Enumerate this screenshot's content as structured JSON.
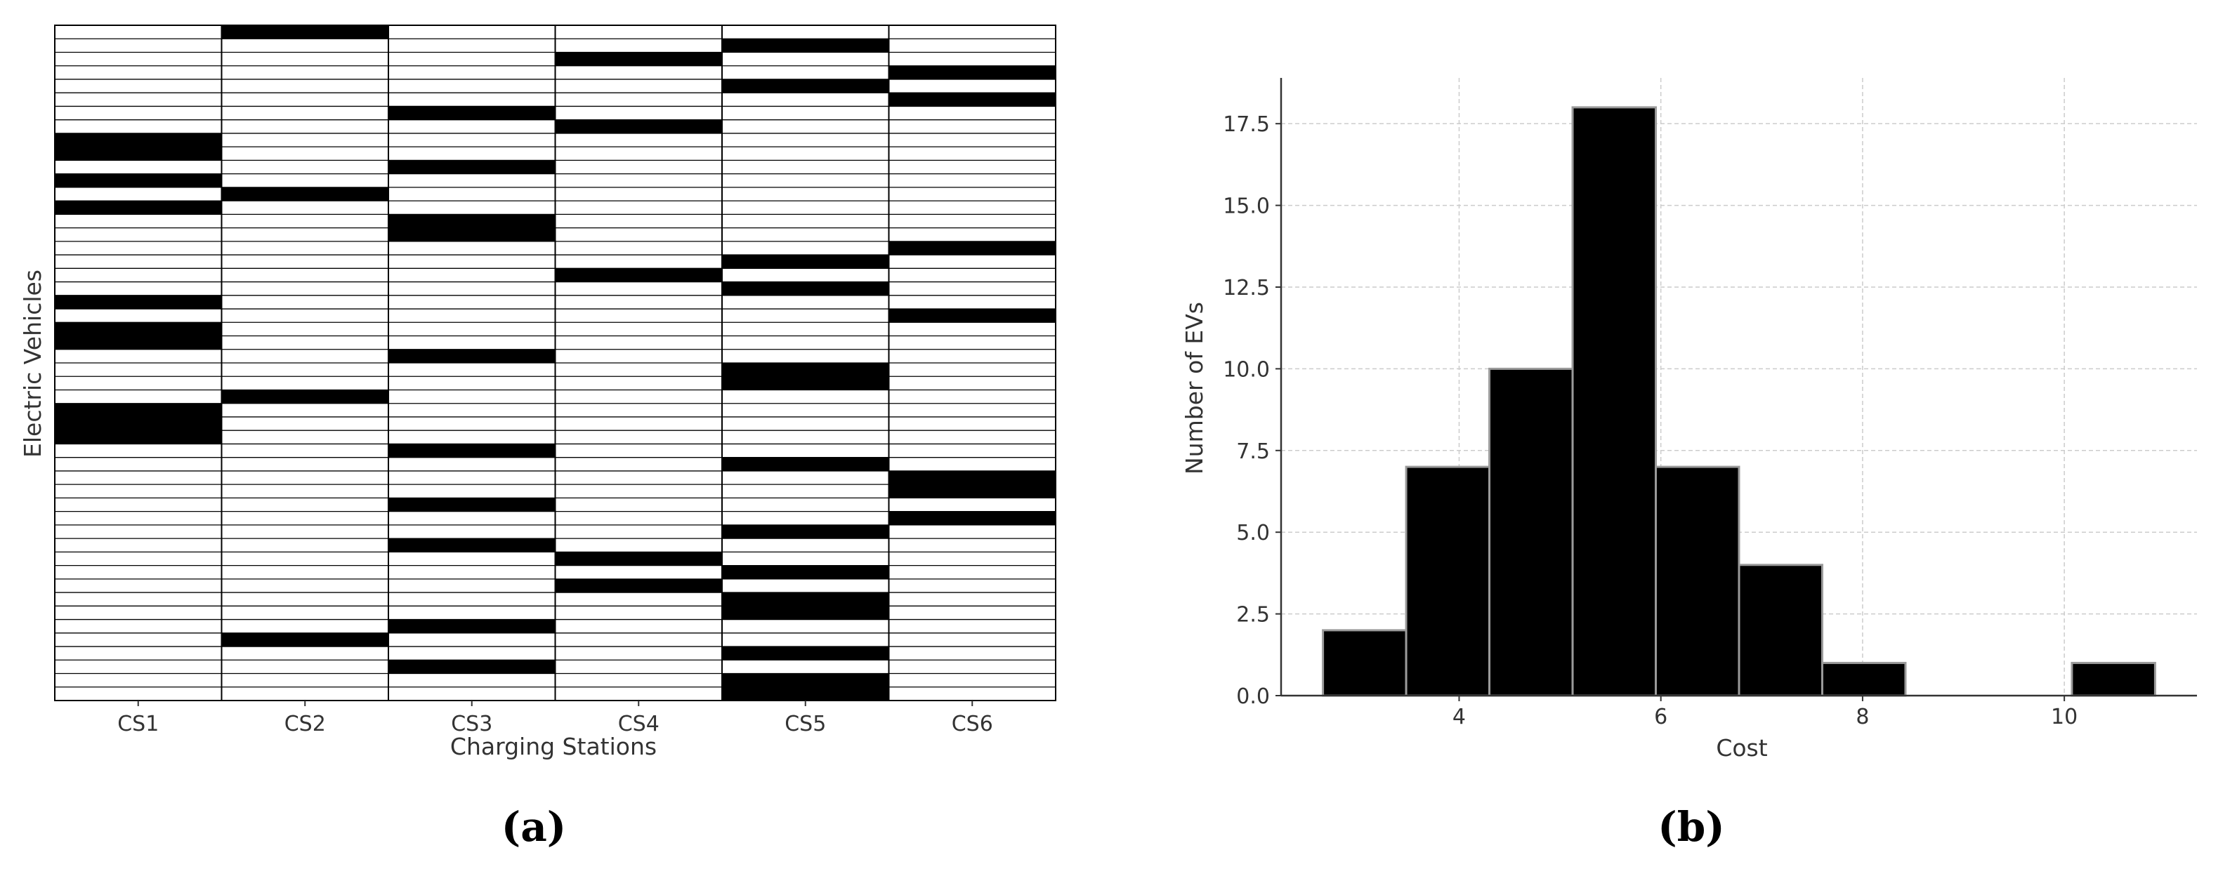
{
  "captions": {
    "a": "(a)",
    "b": "(b)"
  },
  "chart_data": [
    {
      "type": "heatmap",
      "title": "",
      "xlabel": "Charging Stations",
      "ylabel": "Electric Vehicles",
      "categories": [
        "CS1",
        "CS2",
        "CS3",
        "CS4",
        "CS5",
        "CS6"
      ],
      "num_vehicles": 50,
      "assignments": [
        {
          "station": "CS1",
          "vehicles": [
            8,
            9,
            11,
            13,
            20,
            22,
            23,
            28,
            29,
            30
          ]
        },
        {
          "station": "CS2",
          "vehicles": [
            0,
            12,
            27,
            45
          ]
        },
        {
          "station": "CS3",
          "vehicles": [
            6,
            10,
            14,
            15,
            24,
            31,
            35,
            38,
            44,
            47
          ]
        },
        {
          "station": "CS4",
          "vehicles": [
            2,
            7,
            18,
            39,
            41
          ]
        },
        {
          "station": "CS5",
          "vehicles": [
            1,
            4,
            17,
            19,
            25,
            26,
            32,
            37,
            40,
            42,
            43,
            46,
            48,
            49
          ]
        },
        {
          "station": "CS6",
          "vehicles": [
            3,
            5,
            16,
            21,
            33,
            34,
            36
          ]
        }
      ],
      "colors": {
        "assigned": "#000000",
        "unassigned": "#ffffff",
        "grid": "#000000"
      }
    },
    {
      "type": "bar",
      "subtype": "histogram",
      "title": "",
      "xlabel": "Cost",
      "ylabel": "Number of EVs",
      "bin_edges": [
        2.65,
        3.475,
        4.3,
        5.125,
        5.95,
        6.775,
        7.6,
        8.425,
        9.25,
        10.075,
        10.9
      ],
      "values": [
        2,
        7,
        10,
        18,
        7,
        4,
        1,
        0,
        0,
        1
      ],
      "xlim": [
        2.235,
        11.315
      ],
      "ylim": [
        0,
        18.9
      ],
      "xticks": [
        "4",
        "6",
        "8",
        "10"
      ],
      "yticks": [
        "0.0",
        "2.5",
        "5.0",
        "7.5",
        "10.0",
        "12.5",
        "15.0",
        "17.5"
      ],
      "grid": true,
      "colors": {
        "bar": "#000000",
        "edge": "#9a9a9a",
        "grid": "#cccccc"
      }
    }
  ]
}
